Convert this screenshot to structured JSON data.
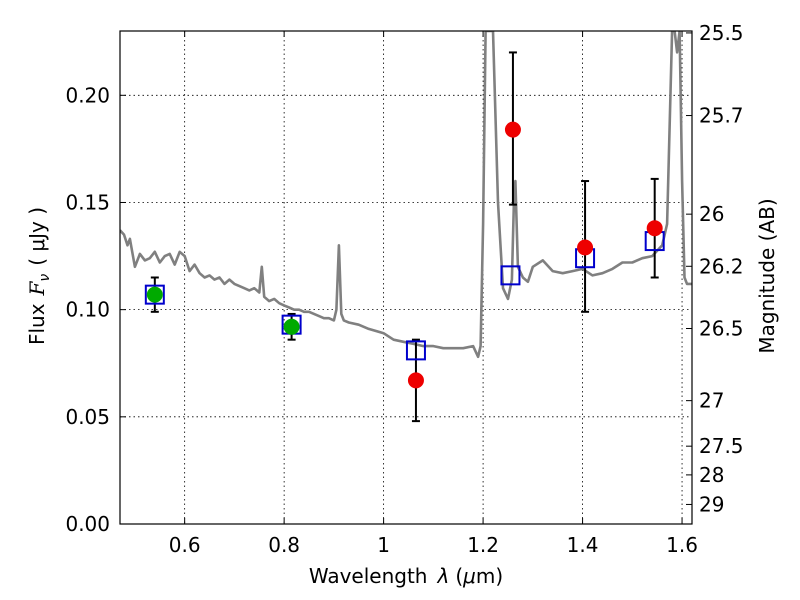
{
  "chart_data": {
    "type": "scatter",
    "xlabel_text": "Wavelength",
    "xlabel_symbol": "λ",
    "xlabel_unit_open": "(",
    "xlabel_unit_mu": "μ",
    "xlabel_unit_rest": "m)",
    "ylabel_text": "Flux",
    "ylabel_symbol": "F",
    "ylabel_sub": "ν",
    "ylabel_unit": "( μJy )",
    "y2label": "Magnitude (AB)",
    "xlim": [
      0.47,
      1.62
    ],
    "ylim": [
      0.0,
      0.23
    ],
    "x_ticks": [
      {
        "value": 0.6,
        "label": "0.6"
      },
      {
        "value": 0.8,
        "label": "0.8"
      },
      {
        "value": 1.0,
        "label": "1"
      },
      {
        "value": 1.2,
        "label": "1.2"
      },
      {
        "value": 1.4,
        "label": "1.4"
      },
      {
        "value": 1.6,
        "label": "1.6"
      }
    ],
    "y_ticks": [
      {
        "value": 0.0,
        "label": "0.00"
      },
      {
        "value": 0.05,
        "label": "0.05"
      },
      {
        "value": 0.1,
        "label": "0.10"
      },
      {
        "value": 0.15,
        "label": "0.15"
      },
      {
        "value": 0.2,
        "label": "0.20"
      }
    ],
    "y2_ticks": [
      {
        "mag": 25.5,
        "label": "25.5"
      },
      {
        "mag": 25.7,
        "label": "25.7"
      },
      {
        "mag": 26.0,
        "label": "26"
      },
      {
        "mag": 26.2,
        "label": "26.2"
      },
      {
        "mag": 26.5,
        "label": "26.5"
      },
      {
        "mag": 27.0,
        "label": "27"
      },
      {
        "mag": 27.5,
        "label": "27.5"
      },
      {
        "mag": 28.0,
        "label": "28"
      },
      {
        "mag": 29.0,
        "label": "29"
      }
    ],
    "grid": true,
    "series": [
      {
        "name": "model spectrum",
        "kind": "line",
        "color": "#808080",
        "x": [
          0.47,
          0.478,
          0.485,
          0.49,
          0.5,
          0.51,
          0.52,
          0.53,
          0.54,
          0.55,
          0.56,
          0.57,
          0.58,
          0.59,
          0.6,
          0.61,
          0.62,
          0.63,
          0.64,
          0.65,
          0.66,
          0.67,
          0.68,
          0.69,
          0.7,
          0.71,
          0.72,
          0.73,
          0.74,
          0.75,
          0.755,
          0.76,
          0.77,
          0.78,
          0.79,
          0.8,
          0.81,
          0.82,
          0.83,
          0.84,
          0.85,
          0.86,
          0.87,
          0.88,
          0.89,
          0.9,
          0.905,
          0.91,
          0.915,
          0.92,
          0.93,
          0.95,
          0.97,
          1.0,
          1.02,
          1.04,
          1.06,
          1.08,
          1.1,
          1.12,
          1.14,
          1.16,
          1.18,
          1.19,
          1.195,
          1.2,
          1.205,
          1.21,
          1.215,
          1.22,
          1.23,
          1.24,
          1.25,
          1.258,
          1.262,
          1.265,
          1.27,
          1.28,
          1.29,
          1.3,
          1.32,
          1.34,
          1.36,
          1.38,
          1.4,
          1.42,
          1.44,
          1.46,
          1.48,
          1.5,
          1.52,
          1.54,
          1.56,
          1.57,
          1.58,
          1.585,
          1.59,
          1.595,
          1.6,
          1.605,
          1.61,
          1.62
        ],
        "y": [
          0.137,
          0.135,
          0.13,
          0.133,
          0.12,
          0.126,
          0.123,
          0.124,
          0.127,
          0.122,
          0.125,
          0.126,
          0.121,
          0.127,
          0.125,
          0.118,
          0.121,
          0.117,
          0.115,
          0.116,
          0.114,
          0.115,
          0.112,
          0.114,
          0.112,
          0.111,
          0.11,
          0.109,
          0.11,
          0.108,
          0.12,
          0.106,
          0.104,
          0.105,
          0.103,
          0.102,
          0.101,
          0.1,
          0.1,
          0.099,
          0.099,
          0.098,
          0.097,
          0.096,
          0.096,
          0.095,
          0.1,
          0.13,
          0.098,
          0.095,
          0.094,
          0.093,
          0.091,
          0.089,
          0.086,
          0.085,
          0.084,
          0.083,
          0.083,
          0.082,
          0.082,
          0.082,
          0.083,
          0.078,
          0.083,
          0.14,
          0.23,
          0.23,
          0.23,
          0.23,
          0.15,
          0.11,
          0.105,
          0.114,
          0.15,
          0.16,
          0.12,
          0.115,
          0.113,
          0.12,
          0.123,
          0.118,
          0.117,
          0.118,
          0.119,
          0.116,
          0.117,
          0.119,
          0.122,
          0.122,
          0.124,
          0.125,
          0.13,
          0.14,
          0.23,
          0.23,
          0.22,
          0.23,
          0.16,
          0.115,
          0.112,
          0.112
        ]
      },
      {
        "name": "model photometry",
        "kind": "open-square",
        "color": "#0000cc",
        "x": [
          0.54,
          0.815,
          1.065,
          1.255,
          1.405,
          1.545
        ],
        "y": [
          0.107,
          0.093,
          0.081,
          0.116,
          0.124,
          0.132
        ]
      },
      {
        "name": "observed (green)",
        "kind": "circle",
        "color": "#00aa00",
        "x": [
          0.54,
          0.815
        ],
        "y": [
          0.107,
          0.092
        ],
        "yerr": [
          0.008,
          0.006
        ]
      },
      {
        "name": "observed (red)",
        "kind": "circle",
        "color": "#ee0000",
        "x": [
          1.065,
          1.26,
          1.405,
          1.545
        ],
        "y": [
          0.067,
          0.184,
          0.129,
          0.138
        ],
        "yerr_low": [
          0.019,
          0.035,
          0.03,
          0.023
        ],
        "yerr_high": [
          0.019,
          0.036,
          0.031,
          0.023
        ]
      }
    ]
  }
}
